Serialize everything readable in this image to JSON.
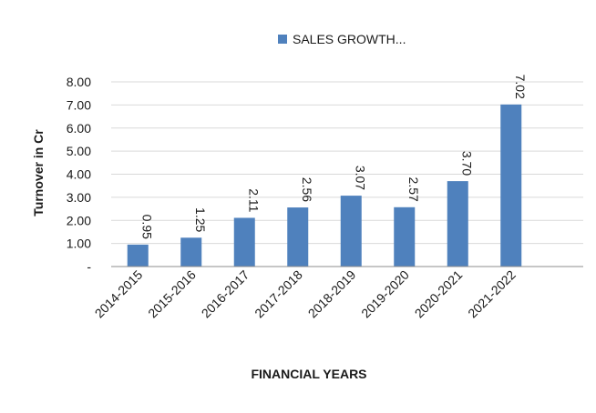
{
  "chart_data": {
    "type": "bar",
    "categories": [
      "2014-2015",
      "2015-2016",
      "2016-2017",
      "2017-2018",
      "2018-2019",
      "2019-2020",
      "2020-2021",
      "2021-2022"
    ],
    "series": [
      {
        "name": "SALES GROWTH...",
        "values": [
          0.95,
          1.25,
          2.11,
          2.56,
          3.07,
          2.57,
          3.7,
          7.02
        ]
      }
    ],
    "data_labels": [
      "0.95",
      "1.25",
      "2.11",
      "2.56",
      "3.07",
      "2.57",
      "3.70",
      "7.02"
    ],
    "yticks": [
      "-",
      "1.00",
      "2.00",
      "3.00",
      "4.00",
      "5.00",
      "6.00",
      "7.00",
      "8.00"
    ],
    "ylim": [
      0,
      8
    ],
    "xlabel": "FINANCIAL YEARS",
    "ylabel": "Turnover in Cr",
    "legend_position": "top-center",
    "grid": true,
    "colors": {
      "bar": "#4f81bd",
      "grid": "#d9d9d9",
      "axis": "#8c8c8c"
    }
  }
}
